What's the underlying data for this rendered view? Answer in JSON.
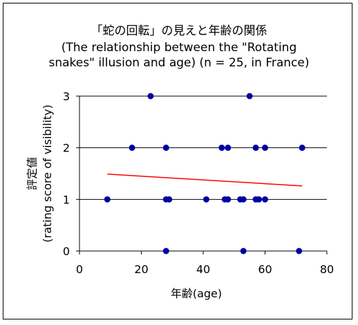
{
  "chart_data": {
    "type": "scatter",
    "title": "「蛇の回転」の見えと年齢の関係",
    "subtitle_lines": [
      "(The relationship between the \"Rotating",
      "snakes\" illusion and age) (n = 25, in France)"
    ],
    "xlabel": "年齢(age)",
    "ylabel_lines": [
      "評定値",
      "(rating score of visibility)"
    ],
    "xlim": [
      0,
      80
    ],
    "ylim": [
      0,
      3
    ],
    "xticks": [
      0,
      20,
      40,
      60,
      80
    ],
    "yticks": [
      0,
      1,
      2,
      3
    ],
    "grid": "horizontal",
    "points": [
      {
        "x": 9,
        "y": 1
      },
      {
        "x": 17,
        "y": 2
      },
      {
        "x": 23,
        "y": 3
      },
      {
        "x": 28,
        "y": 2
      },
      {
        "x": 28,
        "y": 1
      },
      {
        "x": 29,
        "y": 1
      },
      {
        "x": 28,
        "y": 0
      },
      {
        "x": 41,
        "y": 1
      },
      {
        "x": 46,
        "y": 2
      },
      {
        "x": 48,
        "y": 2
      },
      {
        "x": 47,
        "y": 1
      },
      {
        "x": 48,
        "y": 1
      },
      {
        "x": 52,
        "y": 1
      },
      {
        "x": 53,
        "y": 1
      },
      {
        "x": 53,
        "y": 0
      },
      {
        "x": 55,
        "y": 3
      },
      {
        "x": 57,
        "y": 2
      },
      {
        "x": 60,
        "y": 2
      },
      {
        "x": 57,
        "y": 1
      },
      {
        "x": 58,
        "y": 1
      },
      {
        "x": 60,
        "y": 1
      },
      {
        "x": 71,
        "y": 0
      },
      {
        "x": 72,
        "y": 2
      }
    ],
    "trendline": {
      "x": [
        9,
        72
      ],
      "y": [
        1.49,
        1.26
      ]
    },
    "colors": {
      "points": "#0000a0",
      "trendline": "#ff0000",
      "grid": "#000000"
    }
  }
}
